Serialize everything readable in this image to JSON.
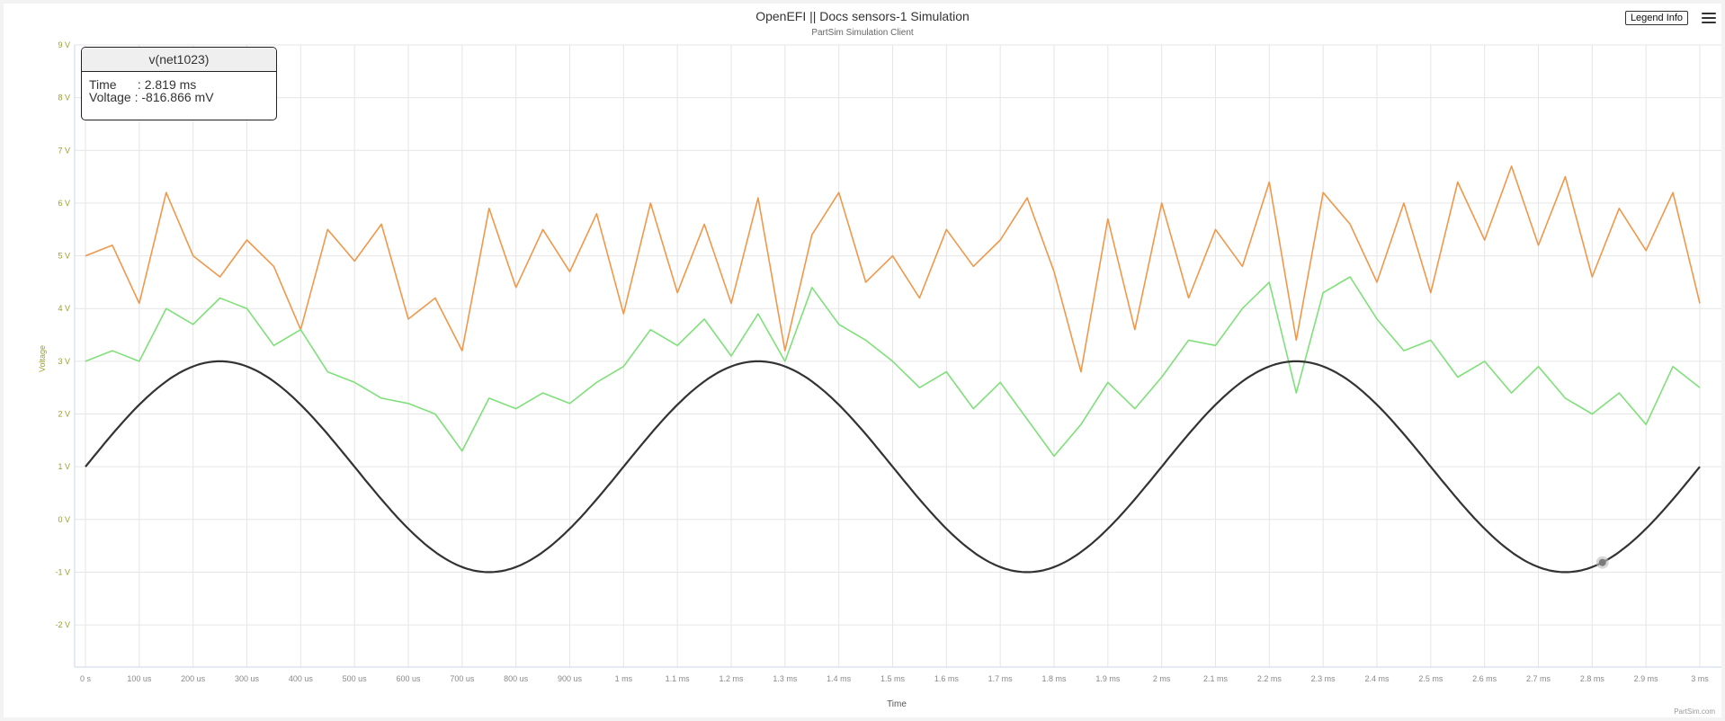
{
  "title": "OpenEFI || Docs sensors-1 Simulation",
  "subtitle": "PartSim Simulation Client",
  "legend_button": "Legend Info",
  "credit": "PartSim.com",
  "tooltip": {
    "series": "v(net1023)",
    "time_label": "Time",
    "time_value": "2.819 ms",
    "voltage_label": "Voltage",
    "voltage_value": "-816.866 mV"
  },
  "chart_data": {
    "type": "line",
    "title": "OpenEFI || Docs sensors-1 Simulation",
    "subtitle": "PartSim Simulation Client",
    "xlabel": "Time",
    "ylabel": "Voltage",
    "xlim_ms": [
      0,
      3
    ],
    "ylim_v": [
      -2.8,
      9
    ],
    "grid": true,
    "x_tick_labels": [
      "0 s",
      "100 us",
      "200 us",
      "300 us",
      "400 us",
      "500 us",
      "600 us",
      "700 us",
      "800 us",
      "900 us",
      "1 ms",
      "1.1 ms",
      "1.2 ms",
      "1.3 ms",
      "1.4 ms",
      "1.5 ms",
      "1.6 ms",
      "1.7 ms",
      "1.8 ms",
      "1.9 ms",
      "2 ms",
      "2.1 ms",
      "2.2 ms",
      "2.3 ms",
      "2.4 ms",
      "2.5 ms",
      "2.6 ms",
      "2.7 ms",
      "2.8 ms",
      "2.9 ms",
      "3 ms"
    ],
    "y_ticks": [
      -2,
      -1,
      0,
      1,
      2,
      3,
      4,
      5,
      6,
      7,
      8,
      9
    ],
    "y_tick_labels": [
      "-2 V",
      "-1 V",
      "0 V",
      "1 V",
      "2 V",
      "3 V",
      "4 V",
      "5 V",
      "6 V",
      "7 V",
      "8 V",
      "9 V"
    ],
    "colors": {
      "sine": "#333333",
      "noisy_high": "#f0984a",
      "noisy_low": "#7fe07a",
      "marker": "#7b7b7b"
    },
    "series": [
      {
        "id": "sine",
        "description": "sinusoid, offset 1 V, amplitude 2 V, period 1 ms",
        "x_ms": [
          0,
          0.1,
          0.2,
          0.25,
          0.3,
          0.4,
          0.5,
          0.6,
          0.7,
          0.75,
          0.8,
          0.9,
          1.0,
          1.1,
          1.2,
          1.25,
          1.3,
          1.4,
          1.5,
          1.6,
          1.7,
          1.75,
          1.8,
          1.9,
          2.0,
          2.1,
          2.2,
          2.25,
          2.3,
          2.4,
          2.5,
          2.6,
          2.7,
          2.75,
          2.8,
          2.9,
          3.0
        ],
        "y_v": [
          1.0,
          2.18,
          2.9,
          3.0,
          2.9,
          2.18,
          1.0,
          -0.18,
          -0.9,
          -1.0,
          -0.9,
          -0.18,
          1.0,
          2.18,
          2.9,
          3.0,
          2.9,
          2.18,
          1.0,
          -0.18,
          -0.9,
          -1.0,
          -0.9,
          -0.18,
          1.0,
          2.18,
          2.9,
          3.0,
          2.9,
          2.18,
          1.0,
          -0.18,
          -0.9,
          -1.0,
          -0.9,
          -0.18,
          1.0
        ]
      },
      {
        "id": "noisy_high",
        "x_ms": [
          0,
          0.05,
          0.1,
          0.15,
          0.2,
          0.25,
          0.3,
          0.35,
          0.4,
          0.45,
          0.5,
          0.55,
          0.6,
          0.65,
          0.7,
          0.75,
          0.8,
          0.85,
          0.9,
          0.95,
          1.0,
          1.05,
          1.1,
          1.15,
          1.2,
          1.25,
          1.3,
          1.35,
          1.4,
          1.45,
          1.5,
          1.55,
          1.6,
          1.65,
          1.7,
          1.75,
          1.8,
          1.85,
          1.9,
          1.95,
          2.0,
          2.05,
          2.1,
          2.15,
          2.2,
          2.25,
          2.3,
          2.35,
          2.4,
          2.45,
          2.5,
          2.55,
          2.6,
          2.65,
          2.7,
          2.75,
          2.8,
          2.85,
          2.9,
          2.95,
          3.0
        ],
        "y_v": [
          5.0,
          5.2,
          4.1,
          6.2,
          5.0,
          4.6,
          5.3,
          4.8,
          3.6,
          5.5,
          4.9,
          5.6,
          3.8,
          4.2,
          3.2,
          5.9,
          4.4,
          5.5,
          4.7,
          5.8,
          3.9,
          6.0,
          4.3,
          5.6,
          4.1,
          6.1,
          3.2,
          5.4,
          6.2,
          4.5,
          5.0,
          4.2,
          5.5,
          4.8,
          5.3,
          6.1,
          4.7,
          2.8,
          5.7,
          3.6,
          6.0,
          4.2,
          5.5,
          4.8,
          6.4,
          3.4,
          6.2,
          5.6,
          4.5,
          6.0,
          4.3,
          6.4,
          5.3,
          6.7,
          5.2,
          6.5,
          4.6,
          5.9,
          5.1,
          6.2,
          4.1
        ]
      },
      {
        "id": "noisy_low",
        "x_ms": [
          0,
          0.05,
          0.1,
          0.15,
          0.2,
          0.25,
          0.3,
          0.35,
          0.4,
          0.45,
          0.5,
          0.55,
          0.6,
          0.65,
          0.7,
          0.75,
          0.8,
          0.85,
          0.9,
          0.95,
          1.0,
          1.05,
          1.1,
          1.15,
          1.2,
          1.25,
          1.3,
          1.35,
          1.4,
          1.45,
          1.5,
          1.55,
          1.6,
          1.65,
          1.7,
          1.75,
          1.8,
          1.85,
          1.9,
          1.95,
          2.0,
          2.05,
          2.1,
          2.15,
          2.2,
          2.25,
          2.3,
          2.35,
          2.4,
          2.45,
          2.5,
          2.55,
          2.6,
          2.65,
          2.7,
          2.75,
          2.8,
          2.85,
          2.9,
          2.95,
          3.0
        ],
        "y_v": [
          3.0,
          3.2,
          3.0,
          4.0,
          3.7,
          4.2,
          4.0,
          3.3,
          3.6,
          2.8,
          2.6,
          2.3,
          2.2,
          2.0,
          1.3,
          2.3,
          2.1,
          2.4,
          2.2,
          2.6,
          2.9,
          3.6,
          3.3,
          3.8,
          3.1,
          3.9,
          3.0,
          4.4,
          3.7,
          3.4,
          3.0,
          2.5,
          2.8,
          2.1,
          2.6,
          1.9,
          1.2,
          1.8,
          2.6,
          2.1,
          2.7,
          3.4,
          3.3,
          4.0,
          4.5,
          2.4,
          4.3,
          4.6,
          3.8,
          3.2,
          3.4,
          2.7,
          3.0,
          2.4,
          2.9,
          2.3,
          2.0,
          2.4,
          1.8,
          2.9,
          2.5
        ]
      }
    ],
    "marker": {
      "series": "sine",
      "x_ms": 2.819,
      "y_v": -0.816866
    }
  }
}
